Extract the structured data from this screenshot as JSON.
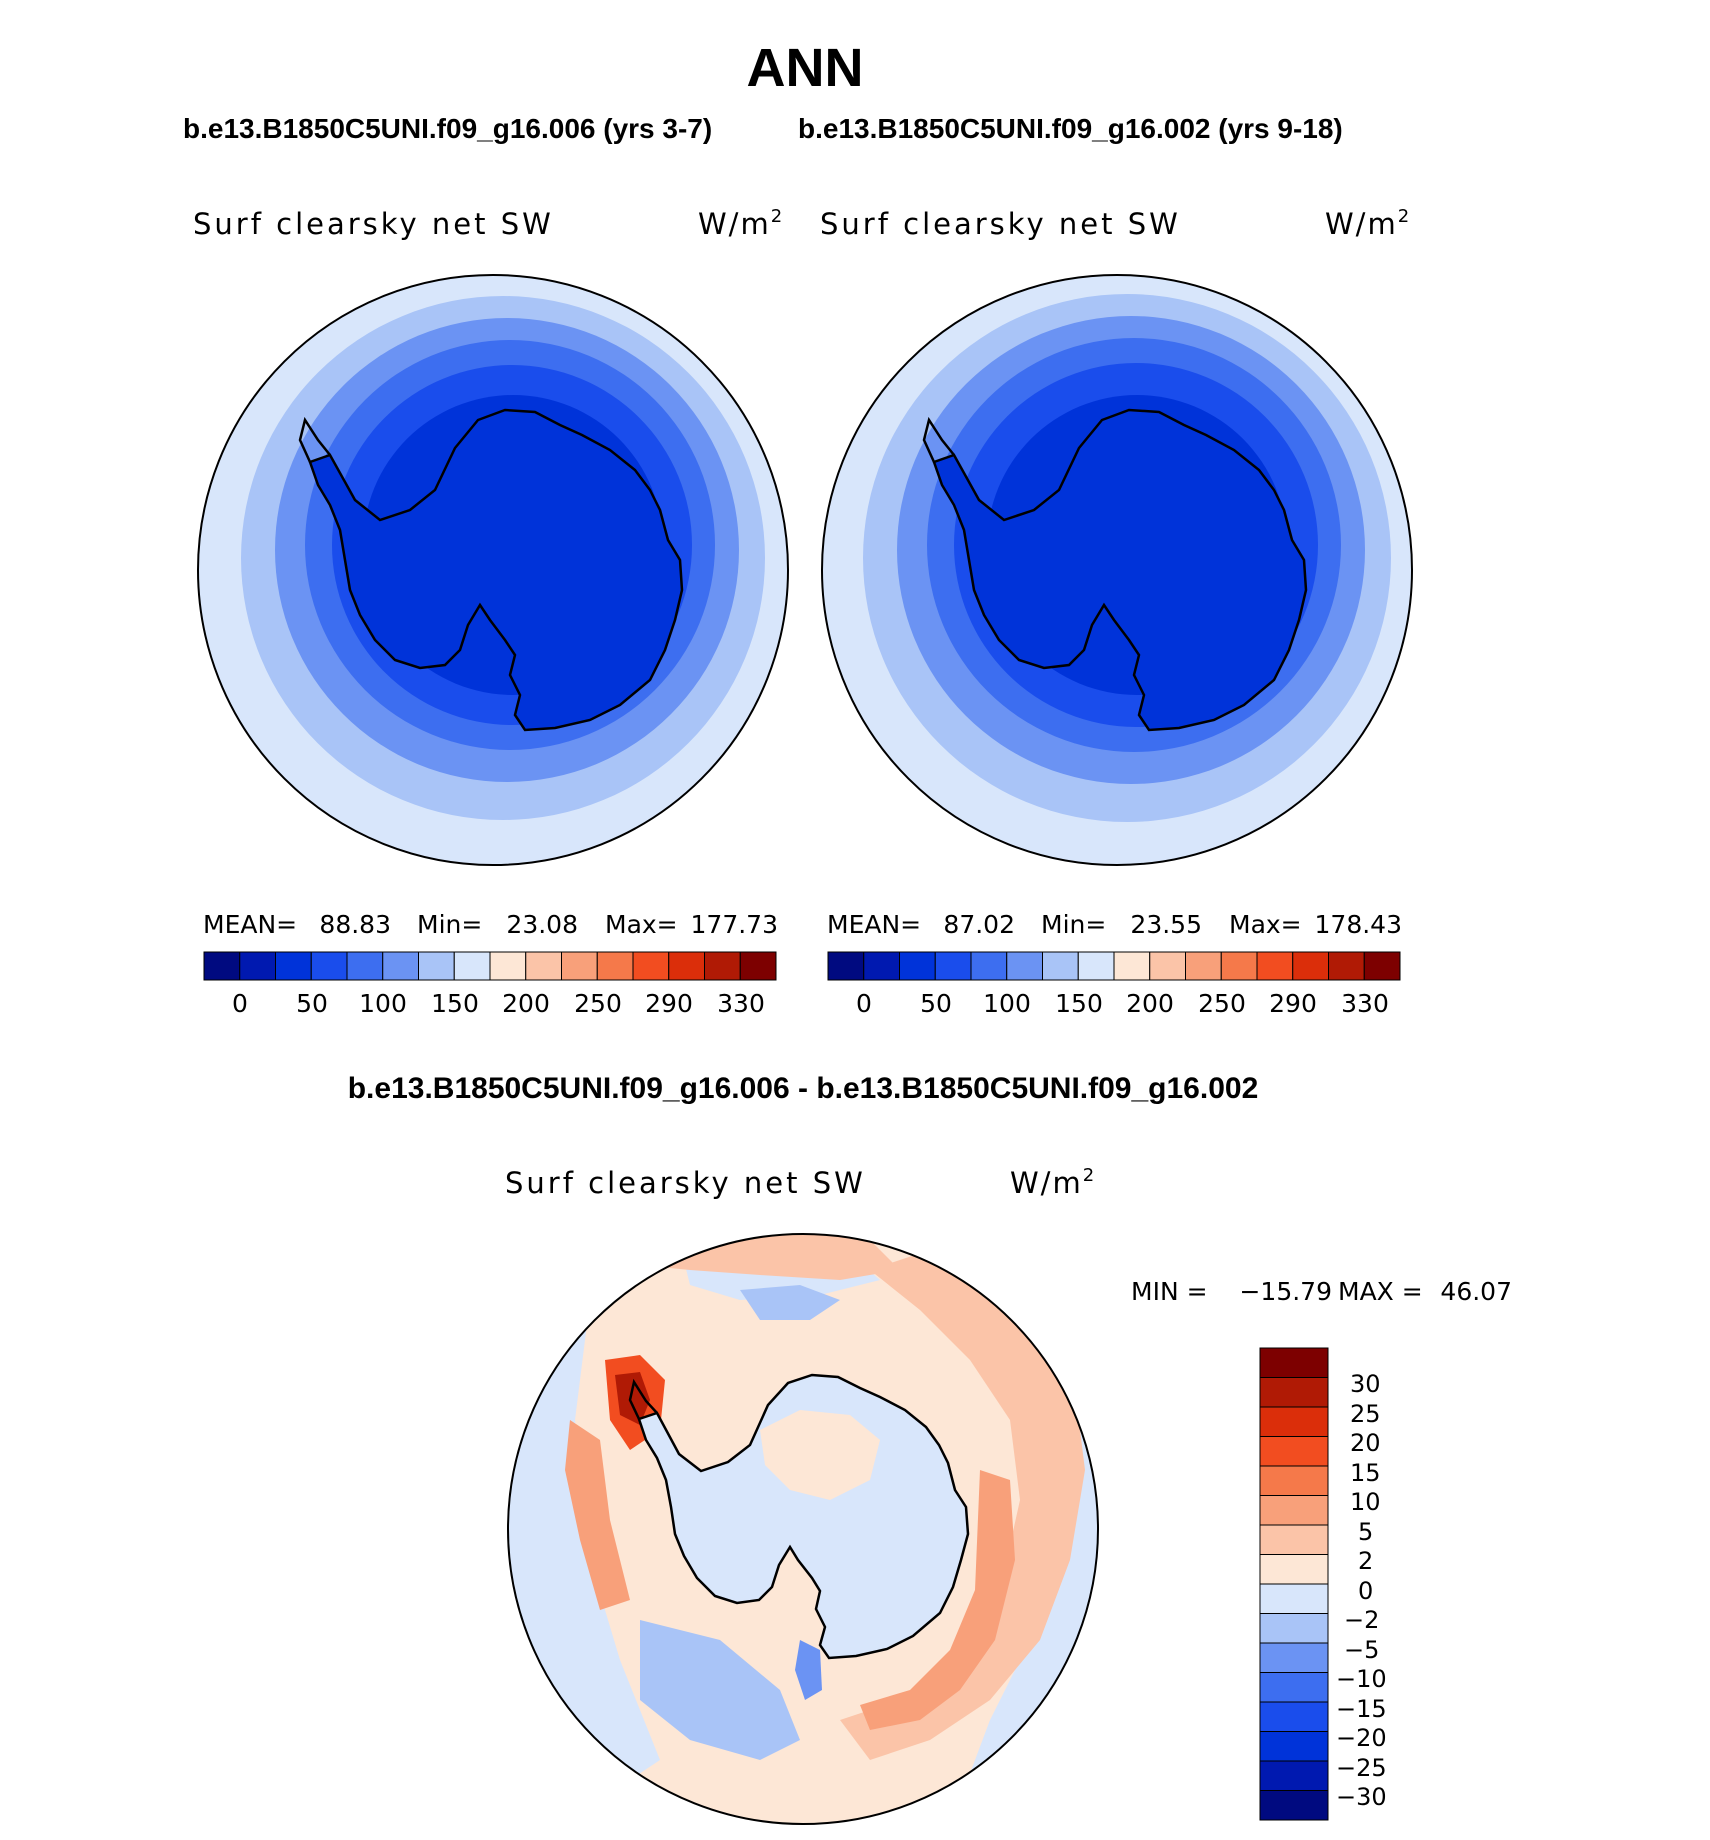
{
  "figure": {
    "title": "ANN",
    "top_subtitle_left": "b.e13.B1850C5UNI.f09_g16.006 (yrs 3-7)",
    "top_subtitle_right": "b.e13.B1850C5UNI.f09_g16.002 (yrs 9-18)",
    "diff_title": "b.e13.B1850C5UNI.f09_g16.006 - b.e13.B1850C5UNI.f09_g16.002"
  },
  "palettes": {
    "abs": [
      "#000a80",
      "#0019b0",
      "#0033d9",
      "#1a4dec",
      "#3d6ef0",
      "#6b93f3",
      "#a9c4f7",
      "#d8e6fb",
      "#fde7d6",
      "#fbc4a8",
      "#f8a07a",
      "#f5794a",
      "#f24d20",
      "#db2e0a",
      "#b01a05",
      "#7d0000"
    ],
    "diff": [
      "#000a80",
      "#0019b0",
      "#0033d9",
      "#1a4dec",
      "#3d6ef0",
      "#6b93f3",
      "#a9c4f7",
      "#d8e6fb",
      "#fde7d6",
      "#fbc4a8",
      "#f8a07a",
      "#f5794a",
      "#f24d20",
      "#db2e0a",
      "#b01a05",
      "#7d0000"
    ]
  },
  "chart_data": [
    {
      "type": "heatmap",
      "panel": "left",
      "variable": "Surf clearsky net SW",
      "units_base": "W/m",
      "units_exp": "2",
      "stats": {
        "mean_label": "MEAN=",
        "mean": "88.83",
        "min_label": "Min=",
        "min": "23.08",
        "max_label": "Max=",
        "max": "177.73"
      },
      "colorbar_labels": [
        "0",
        "50",
        "100",
        "150",
        "200",
        "250",
        "290",
        "330"
      ],
      "ring_values_wm2": [
        160,
        150,
        130,
        110,
        90,
        70,
        50,
        30
      ]
    },
    {
      "type": "heatmap",
      "panel": "right",
      "variable": "Surf clearsky net SW",
      "units_base": "W/m",
      "units_exp": "2",
      "stats": {
        "mean_label": "MEAN=",
        "mean": "87.02",
        "min_label": "Min=",
        "min": "23.55",
        "max_label": "Max=",
        "max": "178.43"
      },
      "colorbar_labels": [
        "0",
        "50",
        "100",
        "150",
        "200",
        "250",
        "290",
        "330"
      ],
      "ring_values_wm2": [
        160,
        150,
        130,
        110,
        90,
        70,
        50,
        30
      ]
    },
    {
      "type": "heatmap",
      "panel": "difference",
      "variable": "Surf clearsky net SW",
      "units_base": "W/m",
      "units_exp": "2",
      "stats": {
        "min_label": "MIN =",
        "min": "−15.79",
        "max_label": "MAX =",
        "max": "46.07"
      },
      "colorbar_labels": [
        "30",
        "25",
        "20",
        "15",
        "10",
        "5",
        "2",
        "0",
        "−2",
        "−5",
        "−10",
        "−15",
        "−20",
        "−25",
        "−30"
      ]
    }
  ]
}
